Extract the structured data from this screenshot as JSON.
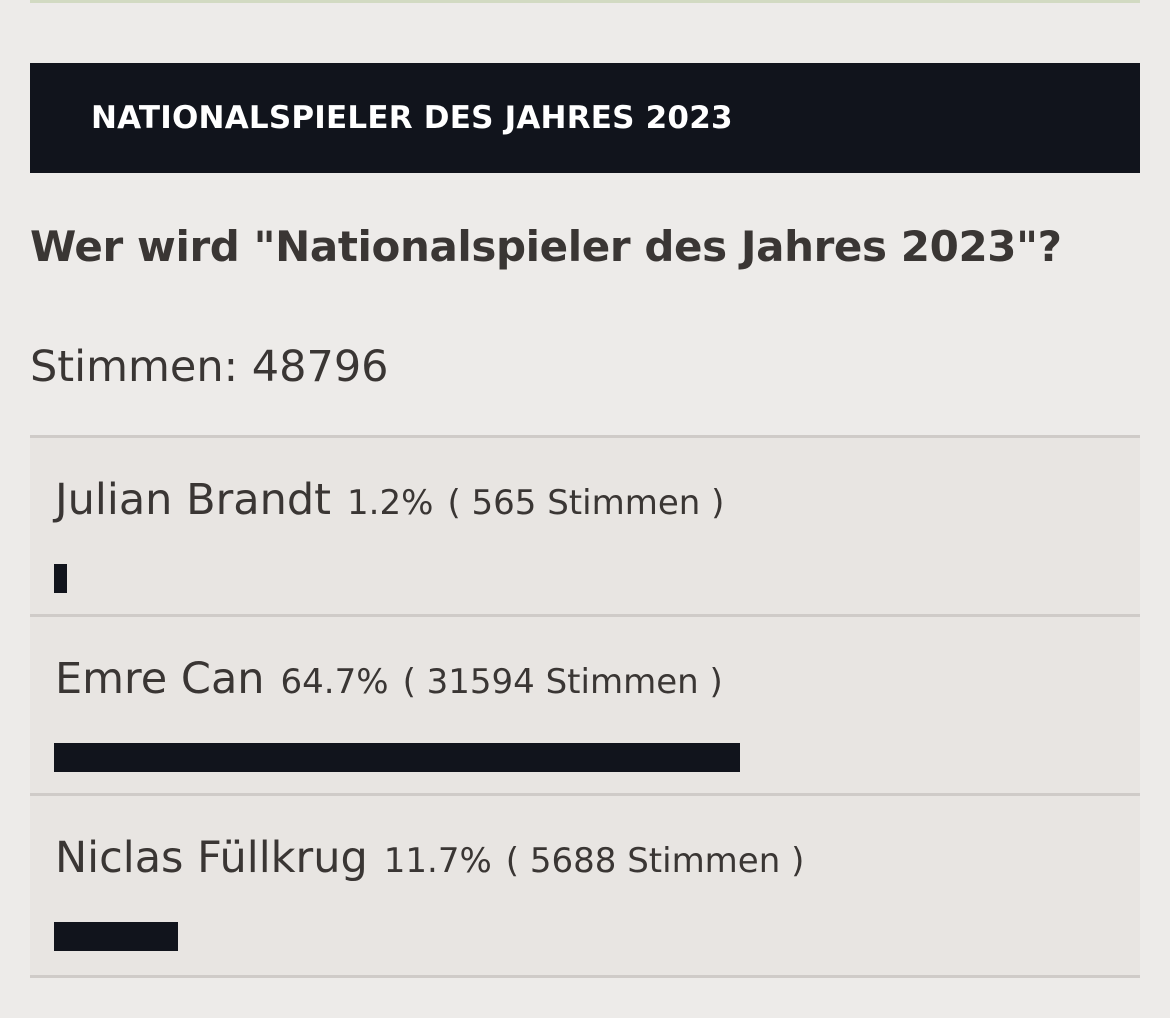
{
  "poll": {
    "header_title": "NATIONALSPIELER DES JAHRES 2023",
    "question": "Wer wird \"Nationalspieler des Jahres 2023\"?",
    "total_label": "Stimmen: 48796",
    "options": [
      {
        "name": "Julian Brandt",
        "percent_label": "1.2%",
        "votes_label": "( 565 Stimmen )",
        "percent": 1.2
      },
      {
        "name": "Emre Can",
        "percent_label": "64.7%",
        "votes_label": "( 31594 Stimmen )",
        "percent": 64.7
      },
      {
        "name": "Niclas Füllkrug",
        "percent_label": "11.7%",
        "votes_label": "( 5688 Stimmen )",
        "percent": 11.7
      }
    ]
  },
  "colors": {
    "background": "#edebe9",
    "header_bg": "#11141c",
    "bar": "#11141c",
    "text": "#3a3634",
    "option_bg": "#e8e5e2"
  }
}
